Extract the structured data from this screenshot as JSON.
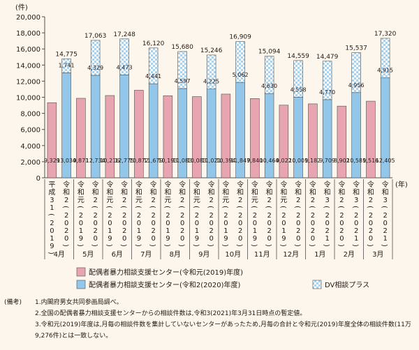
{
  "chart_data": {
    "type": "bar",
    "stacked": true,
    "y_unit_label": "(件)",
    "x_unit_label": "(年)",
    "ylim": [
      0,
      20000
    ],
    "yticks": [
      0,
      2000,
      4000,
      6000,
      8000,
      10000,
      12000,
      14000,
      16000,
      18000,
      20000
    ],
    "ytick_labels": [
      "0",
      "2,000",
      "4,000",
      "6,000",
      "8,000",
      "10,000",
      "12,000",
      "14,000",
      "16,000",
      "18,000",
      "20,000"
    ],
    "grid": false,
    "months": [
      "4月",
      "5月",
      "6月",
      "7月",
      "8月",
      "9月",
      "10月",
      "11月",
      "12月",
      "1月",
      "2月",
      "3月"
    ],
    "bars": [
      {
        "label": "平成31(2019)",
        "series": "s2019",
        "base": 9329,
        "plus": null,
        "total": null,
        "base_label": "9,329",
        "plus_label": "",
        "total_label": ""
      },
      {
        "label": "令和2(2020)",
        "series": "s2020",
        "base": 13034,
        "plus": 1741,
        "total": 14775,
        "base_label": "13,034",
        "plus_label": "1,741",
        "total_label": "14,775"
      },
      {
        "label": "令和元(2019)",
        "series": "s2019",
        "base": 9871,
        "plus": null,
        "total": null,
        "base_label": "9,871",
        "plus_label": "",
        "total_label": ""
      },
      {
        "label": "令和2(2020)",
        "series": "s2020",
        "base": 12734,
        "plus": 4329,
        "total": 17063,
        "base_label": "12,734",
        "plus_label": "4,329",
        "total_label": "17,063"
      },
      {
        "label": "令和元(2019)",
        "series": "s2019",
        "base": 10216,
        "plus": null,
        "total": null,
        "base_label": "10,216",
        "plus_label": "",
        "total_label": ""
      },
      {
        "label": "令和2(2020)",
        "series": "s2020",
        "base": 12775,
        "plus": 4473,
        "total": 17248,
        "base_label": "12,775",
        "plus_label": "4,473",
        "total_label": "17,248"
      },
      {
        "label": "令和元(2019)",
        "series": "s2019",
        "base": 10872,
        "plus": null,
        "total": null,
        "base_label": "10,872",
        "plus_label": "",
        "total_label": ""
      },
      {
        "label": "令和2(2020)",
        "series": "s2020",
        "base": 11679,
        "plus": 4441,
        "total": 16120,
        "base_label": "11,679",
        "plus_label": "4,441",
        "total_label": "16,120"
      },
      {
        "label": "令和元(2019)",
        "series": "s2019",
        "base": 10193,
        "plus": null,
        "total": null,
        "base_label": "10,193",
        "plus_label": "",
        "total_label": ""
      },
      {
        "label": "令和2(2020)",
        "series": "s2020",
        "base": 11083,
        "plus": 4597,
        "total": 15680,
        "base_label": "11,083",
        "plus_label": "4,597",
        "total_label": "15,680"
      },
      {
        "label": "令和元(2019)",
        "series": "s2019",
        "base": 10083,
        "plus": null,
        "total": null,
        "base_label": "10,083",
        "plus_label": "",
        "total_label": ""
      },
      {
        "label": "令和2(2020)",
        "series": "s2020",
        "base": 11021,
        "plus": 4225,
        "total": 15246,
        "base_label": "11,021",
        "plus_label": "4,225",
        "total_label": "15,246"
      },
      {
        "label": "令和元(2019)",
        "series": "s2019",
        "base": 10394,
        "plus": null,
        "total": null,
        "base_label": "10,394",
        "plus_label": "",
        "total_label": ""
      },
      {
        "label": "令和2(2020)",
        "series": "s2020",
        "base": 11847,
        "plus": 5062,
        "total": 16909,
        "base_label": "11,847",
        "plus_label": "5,062",
        "total_label": "16,909"
      },
      {
        "label": "令和元(2019)",
        "series": "s2019",
        "base": 9840,
        "plus": null,
        "total": null,
        "base_label": "9,840",
        "plus_label": "",
        "total_label": ""
      },
      {
        "label": "令和2(2020)",
        "series": "s2020",
        "base": 10464,
        "plus": 4630,
        "total": 15094,
        "base_label": "10,464",
        "plus_label": "4,630",
        "total_label": "15,094"
      },
      {
        "label": "令和元(2019)",
        "series": "s2019",
        "base": 9022,
        "plus": null,
        "total": null,
        "base_label": "9,022",
        "plus_label": "",
        "total_label": ""
      },
      {
        "label": "令和2(2020)",
        "series": "s2020",
        "base": 10001,
        "plus": 4558,
        "total": 14559,
        "base_label": "10,001",
        "plus_label": "4,558",
        "total_label": "14,559"
      },
      {
        "label": "令和2(2020)",
        "series": "s2019",
        "base": 9182,
        "plus": null,
        "total": null,
        "base_label": "9,182",
        "plus_label": "",
        "total_label": ""
      },
      {
        "label": "令和3(2021)",
        "series": "s2020",
        "base": 9709,
        "plus": 4770,
        "total": 14479,
        "base_label": "9,709",
        "plus_label": "4,770",
        "total_label": "14,479"
      },
      {
        "label": "令和2(2020)",
        "series": "s2019",
        "base": 8902,
        "plus": null,
        "total": null,
        "base_label": "8,902",
        "plus_label": "",
        "total_label": ""
      },
      {
        "label": "令和3(2021)",
        "series": "s2020",
        "base": 10581,
        "plus": 4956,
        "total": 15537,
        "base_label": "10,581",
        "plus_label": "4,956",
        "total_label": "15,537"
      },
      {
        "label": "令和2(2020)",
        "series": "s2019",
        "base": 9516,
        "plus": null,
        "total": null,
        "base_label": "9,516",
        "plus_label": "",
        "total_label": ""
      },
      {
        "label": "令和3(2021)",
        "series": "s2020",
        "base": 12405,
        "plus": 4915,
        "total": 17320,
        "base_label": "12,405",
        "plus_label": "4,915",
        "total_label": "17,320"
      }
    ],
    "legend": [
      {
        "key": "s2019",
        "label": "配偶者暴力相談支援センター(令和元(2019)年度)",
        "color": "#e8a5b1"
      },
      {
        "key": "s2020",
        "label": "配偶者暴力相談支援センター(令和2(2020)年度)",
        "color": "#93c7ea"
      },
      {
        "key": "plus",
        "label": "DV相談プラス",
        "color": "#c8e3f5"
      }
    ],
    "legend_placement": "bottom-center"
  },
  "colors": {
    "s2019": "#e8a5b1",
    "s2020": "#93c7ea",
    "plus_bg": "#ffffff",
    "plus_check": "#a9d2ef",
    "stroke": "#4f4f4f",
    "background": "#fdf6ec"
  },
  "notes": {
    "heading": "(備考)",
    "items": [
      "1.内閣府男女共同参画局調べ。",
      "2.全国の配偶者暴力相談支援センターからの相談件数は,令和3(2021)年3月31日時点の暫定値。",
      "3.令和元(2019)年度は,月毎の相談件数を集計していないセンターがあったため,月毎の合計と令和元(2019)年度全体の相談件数(11万9,276件)とは一致しない。"
    ]
  }
}
